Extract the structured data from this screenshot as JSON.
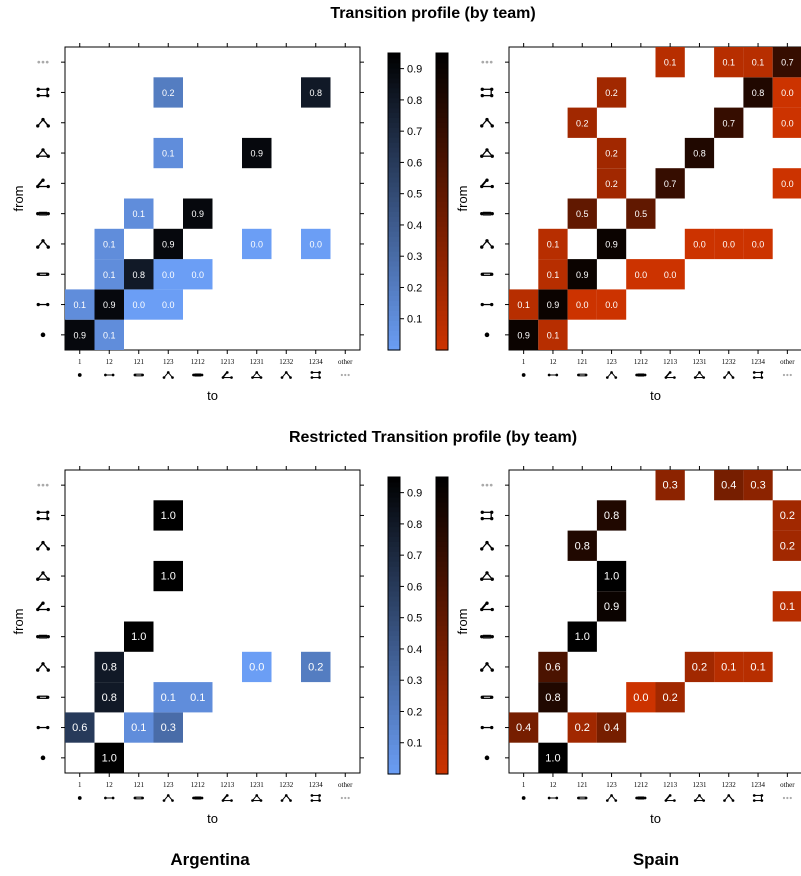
{
  "titles": {
    "top": "Transition profile (by team)",
    "bottom": "Restricted Transition profile (by team)"
  },
  "teams": {
    "left": "Argentina",
    "right": "Spain"
  },
  "colors": {
    "blue_low": "#6b9ef5",
    "blue_high": "#000000",
    "red_low": "#cc3300",
    "red_high": "#000000",
    "grey_other": "#aaaaaa"
  },
  "chart_data": [
    {
      "type": "heatmap",
      "panel": "Argentina - Transition profile",
      "xlabel": "to",
      "ylabel": "from",
      "x_categories": [
        "1",
        "12",
        "121",
        "123",
        "1212",
        "1213",
        "1231",
        "1232",
        "1234",
        "other"
      ],
      "y_categories": [
        "1",
        "12",
        "121",
        "123",
        "1212",
        "1213",
        "1231",
        "1232",
        "1234",
        "other"
      ],
      "colorbar": {
        "ticks": [
          0.1,
          0.2,
          0.3,
          0.4,
          0.5,
          0.6,
          0.7,
          0.8,
          0.9
        ],
        "range": [
          0.0,
          0.95
        ],
        "palette": "blue"
      },
      "cells": [
        {
          "from": "1",
          "to": "1",
          "value": 0.9
        },
        {
          "from": "1",
          "to": "12",
          "value": 0.1
        },
        {
          "from": "12",
          "to": "1",
          "value": 0.1
        },
        {
          "from": "12",
          "to": "12",
          "value": 0.9
        },
        {
          "from": "12",
          "to": "121",
          "value": 0.0
        },
        {
          "from": "12",
          "to": "123",
          "value": 0.0
        },
        {
          "from": "121",
          "to": "12",
          "value": 0.1
        },
        {
          "from": "121",
          "to": "121",
          "value": 0.8
        },
        {
          "from": "121",
          "to": "123",
          "value": 0.0
        },
        {
          "from": "121",
          "to": "1212",
          "value": 0.0
        },
        {
          "from": "123",
          "to": "12",
          "value": 0.1
        },
        {
          "from": "123",
          "to": "123",
          "value": 0.9
        },
        {
          "from": "123",
          "to": "1231",
          "value": 0.0
        },
        {
          "from": "123",
          "to": "1234",
          "value": 0.0
        },
        {
          "from": "1212",
          "to": "121",
          "value": 0.1
        },
        {
          "from": "1212",
          "to": "1212",
          "value": 0.9
        },
        {
          "from": "1231",
          "to": "123",
          "value": 0.1
        },
        {
          "from": "1231",
          "to": "1231",
          "value": 0.9
        },
        {
          "from": "1234",
          "to": "123",
          "value": 0.2
        },
        {
          "from": "1234",
          "to": "1234",
          "value": 0.8
        }
      ]
    },
    {
      "type": "heatmap",
      "panel": "Spain - Transition profile",
      "xlabel": "to",
      "ylabel": "from",
      "x_categories": [
        "1",
        "12",
        "121",
        "123",
        "1212",
        "1213",
        "1231",
        "1232",
        "1234",
        "other"
      ],
      "y_categories": [
        "1",
        "12",
        "121",
        "123",
        "1212",
        "1213",
        "1231",
        "1232",
        "1234",
        "other"
      ],
      "colorbar": {
        "ticks": [
          0.1,
          0.2,
          0.3,
          0.4,
          0.5,
          0.6,
          0.7,
          0.8,
          0.9
        ],
        "range": [
          0.0,
          0.95
        ],
        "palette": "red"
      },
      "cells": [
        {
          "from": "1",
          "to": "1",
          "value": 0.9
        },
        {
          "from": "1",
          "to": "12",
          "value": 0.1
        },
        {
          "from": "12",
          "to": "1",
          "value": 0.1
        },
        {
          "from": "12",
          "to": "12",
          "value": 0.9
        },
        {
          "from": "12",
          "to": "121",
          "value": 0.0
        },
        {
          "from": "12",
          "to": "123",
          "value": 0.0
        },
        {
          "from": "121",
          "to": "12",
          "value": 0.1
        },
        {
          "from": "121",
          "to": "121",
          "value": 0.9
        },
        {
          "from": "121",
          "to": "1212",
          "value": 0.0
        },
        {
          "from": "121",
          "to": "1213",
          "value": 0.0
        },
        {
          "from": "123",
          "to": "12",
          "value": 0.1
        },
        {
          "from": "123",
          "to": "123",
          "value": 0.9
        },
        {
          "from": "123",
          "to": "1231",
          "value": 0.0
        },
        {
          "from": "123",
          "to": "1232",
          "value": 0.0
        },
        {
          "from": "123",
          "to": "1234",
          "value": 0.0
        },
        {
          "from": "1212",
          "to": "121",
          "value": 0.5
        },
        {
          "from": "1212",
          "to": "1212",
          "value": 0.5
        },
        {
          "from": "1213",
          "to": "123",
          "value": 0.2
        },
        {
          "from": "1213",
          "to": "1213",
          "value": 0.7
        },
        {
          "from": "1213",
          "to": "other",
          "value": 0.0
        },
        {
          "from": "1231",
          "to": "123",
          "value": 0.2
        },
        {
          "from": "1231",
          "to": "1231",
          "value": 0.8
        },
        {
          "from": "1232",
          "to": "121",
          "value": 0.2
        },
        {
          "from": "1232",
          "to": "1232",
          "value": 0.7
        },
        {
          "from": "1232",
          "to": "other",
          "value": 0.0
        },
        {
          "from": "1234",
          "to": "123",
          "value": 0.2
        },
        {
          "from": "1234",
          "to": "1234",
          "value": 0.8
        },
        {
          "from": "1234",
          "to": "other",
          "value": 0.0
        },
        {
          "from": "other",
          "to": "1213",
          "value": 0.1
        },
        {
          "from": "other",
          "to": "1232",
          "value": 0.1
        },
        {
          "from": "other",
          "to": "1234",
          "value": 0.1
        },
        {
          "from": "other",
          "to": "other",
          "value": 0.7
        }
      ]
    },
    {
      "type": "heatmap",
      "panel": "Argentina - Restricted Transition profile",
      "xlabel": "to",
      "ylabel": "from",
      "x_categories": [
        "1",
        "12",
        "121",
        "123",
        "1212",
        "1213",
        "1231",
        "1232",
        "1234",
        "other"
      ],
      "y_categories": [
        "1",
        "12",
        "121",
        "123",
        "1212",
        "1213",
        "1231",
        "1232",
        "1234",
        "other"
      ],
      "colorbar": {
        "ticks": [
          0.1,
          0.2,
          0.3,
          0.4,
          0.5,
          0.6,
          0.7,
          0.8,
          0.9
        ],
        "range": [
          0.0,
          0.95
        ],
        "palette": "blue"
      },
      "cells": [
        {
          "from": "1",
          "to": "12",
          "value": 1.0
        },
        {
          "from": "12",
          "to": "1",
          "value": 0.6
        },
        {
          "from": "12",
          "to": "121",
          "value": 0.1
        },
        {
          "from": "12",
          "to": "123",
          "value": 0.3
        },
        {
          "from": "121",
          "to": "12",
          "value": 0.8
        },
        {
          "from": "121",
          "to": "123",
          "value": 0.1
        },
        {
          "from": "121",
          "to": "1212",
          "value": 0.1
        },
        {
          "from": "123",
          "to": "12",
          "value": 0.8
        },
        {
          "from": "123",
          "to": "1231",
          "value": 0.0
        },
        {
          "from": "123",
          "to": "1234",
          "value": 0.2
        },
        {
          "from": "1212",
          "to": "121",
          "value": 1.0
        },
        {
          "from": "1231",
          "to": "123",
          "value": 1.0
        },
        {
          "from": "1234",
          "to": "123",
          "value": 1.0
        }
      ]
    },
    {
      "type": "heatmap",
      "panel": "Spain - Restricted Transition profile",
      "xlabel": "to",
      "ylabel": "from",
      "x_categories": [
        "1",
        "12",
        "121",
        "123",
        "1212",
        "1213",
        "1231",
        "1232",
        "1234",
        "other"
      ],
      "y_categories": [
        "1",
        "12",
        "121",
        "123",
        "1212",
        "1213",
        "1231",
        "1232",
        "1234",
        "other"
      ],
      "colorbar": {
        "ticks": [
          0.1,
          0.2,
          0.3,
          0.4,
          0.5,
          0.6,
          0.7,
          0.8,
          0.9
        ],
        "range": [
          0.0,
          0.95
        ],
        "palette": "red"
      },
      "cells": [
        {
          "from": "1",
          "to": "12",
          "value": 1.0
        },
        {
          "from": "12",
          "to": "1",
          "value": 0.4
        },
        {
          "from": "12",
          "to": "121",
          "value": 0.2
        },
        {
          "from": "12",
          "to": "123",
          "value": 0.4
        },
        {
          "from": "121",
          "to": "12",
          "value": 0.8
        },
        {
          "from": "121",
          "to": "1212",
          "value": 0.0
        },
        {
          "from": "121",
          "to": "1213",
          "value": 0.2
        },
        {
          "from": "123",
          "to": "12",
          "value": 0.6
        },
        {
          "from": "123",
          "to": "1231",
          "value": 0.2
        },
        {
          "from": "123",
          "to": "1232",
          "value": 0.1
        },
        {
          "from": "123",
          "to": "1234",
          "value": 0.1
        },
        {
          "from": "1212",
          "to": "121",
          "value": 1.0
        },
        {
          "from": "1213",
          "to": "123",
          "value": 0.9
        },
        {
          "from": "1213",
          "to": "other",
          "value": 0.1
        },
        {
          "from": "1231",
          "to": "123",
          "value": 1.0
        },
        {
          "from": "1232",
          "to": "121",
          "value": 0.8
        },
        {
          "from": "1232",
          "to": "other",
          "value": 0.2
        },
        {
          "from": "1234",
          "to": "123",
          "value": 0.8
        },
        {
          "from": "1234",
          "to": "other",
          "value": 0.2
        },
        {
          "from": "other",
          "to": "1213",
          "value": 0.3
        },
        {
          "from": "other",
          "to": "1232",
          "value": 0.4
        },
        {
          "from": "other",
          "to": "1234",
          "value": 0.3
        }
      ]
    }
  ]
}
